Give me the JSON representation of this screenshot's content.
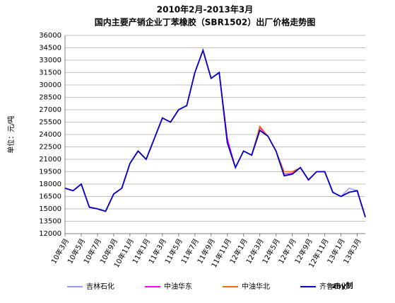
{
  "chart_data": {
    "type": "line",
    "title": "2010年2月-2013年3月",
    "subtitle": "国内主要产销企业丁苯橡胶（SBR1502）出厂价格走势图",
    "y_label": "单位：元/吨",
    "note": "zhy制",
    "categories": [
      "10年3月",
      null,
      "10年5月",
      null,
      "10年7月",
      null,
      "10年9月",
      null,
      "10年11月",
      null,
      "11年1月",
      null,
      "11年3月",
      null,
      "11年5月",
      null,
      "11年7月",
      null,
      "11年9月",
      null,
      "11年11月",
      null,
      "12年1月",
      null,
      "12年3月",
      null,
      "12年5月",
      null,
      "12年7月",
      null,
      "12年9月",
      null,
      "12年11月",
      null,
      "13年1月",
      null,
      "13年3月",
      null
    ],
    "series": [
      {
        "name": "吉林石化",
        "color": "#9999ff",
        "values": [
          17500,
          17200,
          18000,
          15200,
          15000,
          14700,
          16800,
          17500,
          20500,
          22000,
          21000,
          23500,
          26000,
          25500,
          27000,
          27500,
          31500,
          34200,
          30800,
          31500,
          23000,
          20000,
          22000,
          21500,
          24500,
          23800,
          22000,
          19000,
          19200,
          20000,
          18500,
          19500,
          19500,
          17000,
          16500,
          17500,
          17200,
          14000
        ]
      },
      {
        "name": "中油华东",
        "color": "#ff00ff",
        "values": [
          17500,
          17200,
          18000,
          15200,
          15000,
          14700,
          16800,
          17500,
          20500,
          22000,
          21000,
          23500,
          26000,
          25500,
          27000,
          27500,
          31500,
          34200,
          30800,
          31500,
          23500,
          20000,
          22000,
          21500,
          24800,
          23800,
          22000,
          19200,
          19300,
          20000,
          18500,
          19500,
          19500,
          17000,
          16500,
          17000,
          17200,
          14000
        ]
      },
      {
        "name": "中油华北",
        "color": "#ff6600",
        "values": [
          17500,
          17200,
          18000,
          15200,
          15000,
          14700,
          16800,
          17500,
          20500,
          22000,
          21000,
          23500,
          26000,
          25500,
          27000,
          27500,
          31500,
          34200,
          30800,
          31500,
          23000,
          20000,
          22000,
          21500,
          25000,
          23800,
          22000,
          19500,
          19500,
          20000,
          18500,
          19500,
          19500,
          17000,
          16500,
          17000,
          17200,
          14000
        ]
      },
      {
        "name": "齐鲁石化",
        "color": "#0000cc",
        "values": [
          17500,
          17200,
          18000,
          15200,
          15000,
          14700,
          16800,
          17500,
          20500,
          22000,
          21000,
          23500,
          26000,
          25500,
          27000,
          27500,
          31500,
          34200,
          30800,
          31500,
          23000,
          20000,
          22000,
          21500,
          24500,
          23800,
          22000,
          19000,
          19200,
          20000,
          18500,
          19500,
          19500,
          17000,
          16500,
          17000,
          17200,
          14000
        ]
      }
    ],
    "ylim": [
      12000,
      36000
    ],
    "yticks": [
      12000,
      13500,
      15000,
      16500,
      18000,
      19500,
      21000,
      22500,
      24000,
      25500,
      27000,
      28500,
      30000,
      31500,
      33000,
      34500,
      36000
    ],
    "grid": true
  }
}
